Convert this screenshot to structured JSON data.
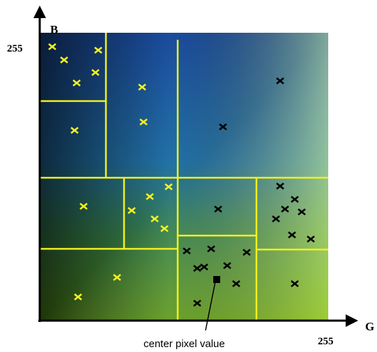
{
  "axes": {
    "x": {
      "label": "G",
      "max": "255"
    },
    "y": {
      "label": "B",
      "max": "255"
    }
  },
  "annotation": "center pixel value"
}
